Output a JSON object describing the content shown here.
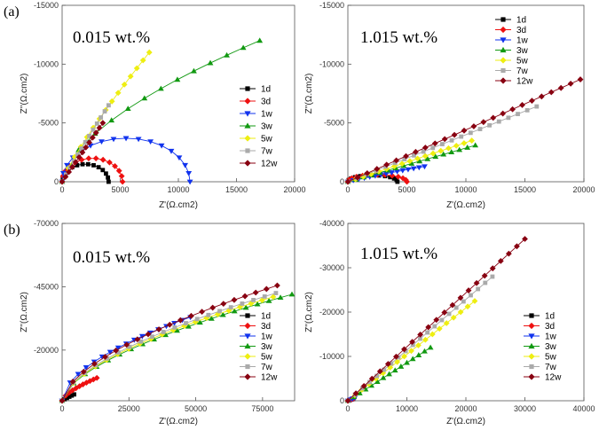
{
  "figure": {
    "panel_labels": [
      "(a)",
      "(b)"
    ]
  },
  "series_styles": {
    "1d": {
      "color": "#000000",
      "marker": "square"
    },
    "3d": {
      "color": "#ee1111",
      "marker": "diamond"
    },
    "1w": {
      "color": "#1133ee",
      "marker": "tri-down"
    },
    "3w": {
      "color": "#119911",
      "marker": "tri-up"
    },
    "5w": {
      "color": "#eeee11",
      "marker": "diamond"
    },
    "7w": {
      "color": "#aaaaaa",
      "marker": "square"
    },
    "12w": {
      "color": "#880011",
      "marker": "diamond"
    }
  },
  "chart_data": [
    {
      "type": "scatter",
      "panel": "(a)",
      "title": "0.015 wt.%",
      "xlabel": "Z'(Ω.cm2)",
      "ylabel": "Z''(Ω.cm2)",
      "xlim": [
        0,
        20000
      ],
      "ylim": [
        0,
        -15000
      ],
      "x_ticks": [
        "0",
        "5000",
        "10000",
        "15000",
        "20000"
      ],
      "y_ticks": [
        "0",
        "-5000",
        "-10000",
        "-15000"
      ],
      "legend": [
        "1d",
        "3d",
        "1w",
        "3w",
        "5w",
        "7w",
        "12w"
      ],
      "series": [
        {
          "name": "1d",
          "kind": "arc",
          "x_end": 4000,
          "peak": 1500,
          "n": 13
        },
        {
          "name": "3d",
          "kind": "arc",
          "x_end": 5200,
          "peak": 2000,
          "n": 13
        },
        {
          "name": "1w",
          "kind": "arc",
          "x_end": 11000,
          "peak": 3700,
          "n": 16
        },
        {
          "name": "3w",
          "kind": "open",
          "x_end": 17000,
          "y_end": 12000,
          "p": 0.6,
          "n": 12
        },
        {
          "name": "5w",
          "kind": "open",
          "x_end": 7500,
          "y_end": 11000,
          "p": 0.85,
          "n": 14
        },
        {
          "name": "7w",
          "kind": "open",
          "x_end": 4000,
          "y_end": 6500,
          "p": 0.95,
          "n": 12
        },
        {
          "name": "12w",
          "kind": "open",
          "x_end": 3500,
          "y_end": 5000,
          "p": 1.0,
          "n": 12
        }
      ]
    },
    {
      "type": "scatter",
      "panel": "(a)",
      "title": "1.015 wt.%",
      "xlabel": "Z'(Ω.cm2)",
      "ylabel": "Z''(Ω.cm2)",
      "xlim": [
        0,
        20000
      ],
      "ylim": [
        0,
        -15000
      ],
      "x_ticks": [
        "0",
        "5000",
        "10000",
        "15000",
        "20000"
      ],
      "y_ticks": [
        "0",
        "-5000",
        "-10000",
        "-15000"
      ],
      "legend": [
        "1d",
        "3d",
        "1w",
        "3w",
        "5w",
        "7w",
        "12w"
      ],
      "series": [
        {
          "name": "1d",
          "kind": "arc",
          "x_end": 4200,
          "peak": 550,
          "n": 12
        },
        {
          "name": "3d",
          "kind": "arc",
          "x_end": 5000,
          "peak": 600,
          "n": 12
        },
        {
          "name": "1w",
          "kind": "open",
          "x_end": 6500,
          "y_end": 1300,
          "p": 0.9,
          "n": 14
        },
        {
          "name": "3w",
          "kind": "open",
          "x_end": 10800,
          "y_end": 3100,
          "p": 1.0,
          "n": 16
        },
        {
          "name": "5w",
          "kind": "open",
          "x_end": 10500,
          "y_end": 3500,
          "p": 1.0,
          "n": 16
        },
        {
          "name": "7w",
          "kind": "open",
          "x_end": 16000,
          "y_end": 6400,
          "p": 1.0,
          "n": 20
        },
        {
          "name": "12w",
          "kind": "open",
          "x_end": 19700,
          "y_end": 8700,
          "p": 1.0,
          "n": 24
        }
      ]
    },
    {
      "type": "scatter",
      "panel": "(b)",
      "title": "0.015 wt.%",
      "xlabel": "Z'(Ω.cm2)",
      "ylabel": "Z''(Ω.cm2)",
      "xlim": [
        0,
        87000
      ],
      "ylim": [
        0,
        -70000
      ],
      "x_ticks": [
        "0",
        "25000",
        "50000",
        "75000"
      ],
      "y_ticks": [
        "-20000",
        "-45000",
        "-70000"
      ],
      "legend": [
        "1d",
        "3d",
        "1w",
        "3w",
        "5w",
        "7w",
        "12w"
      ],
      "series": [
        {
          "name": "1d",
          "kind": "open",
          "x_end": 4500,
          "y_end": 2500,
          "p": 0.9,
          "n": 5
        },
        {
          "name": "3d",
          "kind": "open",
          "x_end": 13000,
          "y_end": 9000,
          "p": 0.65,
          "n": 10
        },
        {
          "name": "1w",
          "kind": "open",
          "x_end": 48000,
          "y_end": 33000,
          "p": 0.55,
          "n": 16
        },
        {
          "name": "3w",
          "kind": "open",
          "x_end": 86000,
          "y_end": 42000,
          "p": 0.6,
          "n": 20
        },
        {
          "name": "5w",
          "kind": "open",
          "x_end": 79000,
          "y_end": 41000,
          "p": 0.6,
          "n": 19
        },
        {
          "name": "7w",
          "kind": "open",
          "x_end": 80000,
          "y_end": 42500,
          "p": 0.6,
          "n": 19
        },
        {
          "name": "12w",
          "kind": "open",
          "x_end": 80500,
          "y_end": 45500,
          "p": 0.6,
          "n": 20
        }
      ]
    },
    {
      "type": "scatter",
      "panel": "(b)",
      "title": "1.015 wt.%",
      "xlabel": "Z'(Ω.cm2)",
      "ylabel": "Z''(Ω.cm2)",
      "xlim": [
        0,
        40000
      ],
      "ylim": [
        0,
        -40000
      ],
      "x_ticks": [
        "0",
        "10000",
        "20000",
        "30000",
        "40000"
      ],
      "y_ticks": [
        "0",
        "-10000",
        "-20000",
        "-30000",
        "-40000"
      ],
      "legend": [
        "1d",
        "3d",
        "1w",
        "3w",
        "5w",
        "7w",
        "12w"
      ],
      "series": [
        {
          "name": "1d",
          "kind": "open",
          "x_end": 900,
          "y_end": 400,
          "p": 1.0,
          "n": 3
        },
        {
          "name": "3d",
          "kind": "open",
          "x_end": 1000,
          "y_end": 500,
          "p": 1.0,
          "n": 3
        },
        {
          "name": "1w",
          "kind": "open",
          "x_end": 1200,
          "y_end": 700,
          "p": 1.0,
          "n": 3
        },
        {
          "name": "3w",
          "kind": "open",
          "x_end": 14000,
          "y_end": 12000,
          "p": 1.0,
          "n": 14
        },
        {
          "name": "5w",
          "kind": "open",
          "x_end": 21500,
          "y_end": 22500,
          "p": 1.0,
          "n": 18
        },
        {
          "name": "7w",
          "kind": "open",
          "x_end": 24500,
          "y_end": 28000,
          "p": 1.0,
          "n": 20
        },
        {
          "name": "12w",
          "kind": "open",
          "x_end": 30000,
          "y_end": 36500,
          "p": 1.0,
          "n": 22
        }
      ]
    }
  ]
}
